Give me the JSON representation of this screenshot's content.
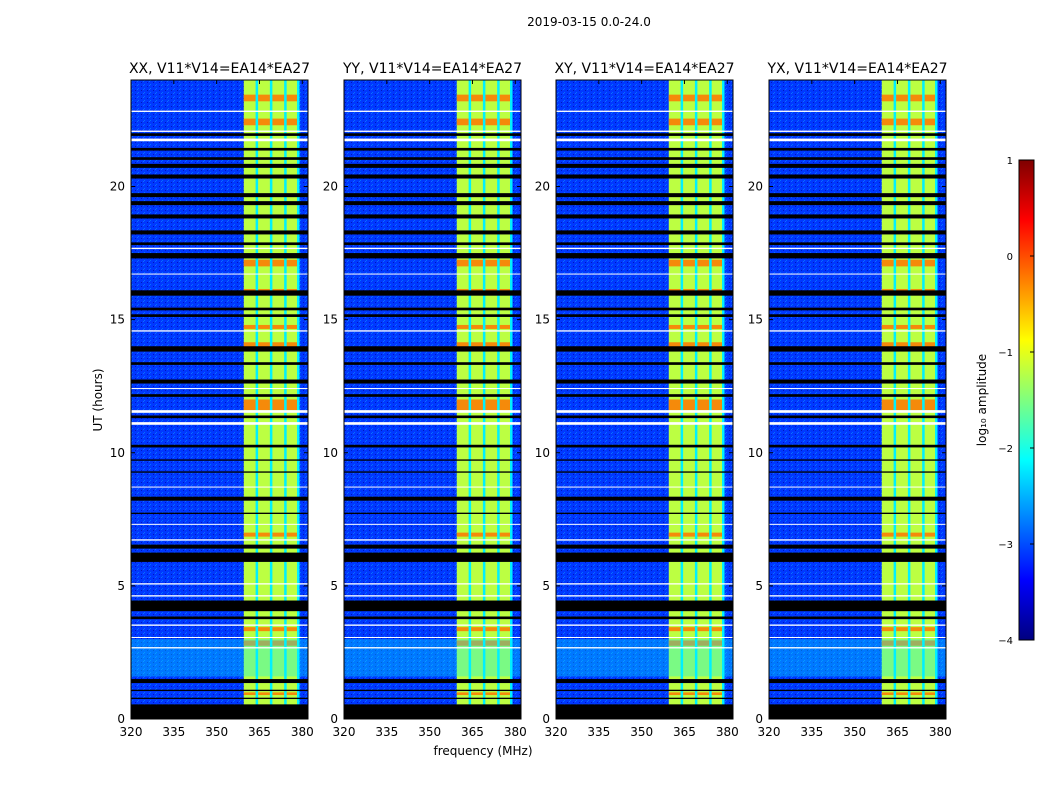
{
  "figure": {
    "suptitle": "2019-03-15 0.0-24.0",
    "xlabel": "frequency (MHz)",
    "ylabel": "UT (hours)"
  },
  "chart_data": {
    "type": "heatmap",
    "x_range_mhz": [
      320,
      382
    ],
    "y_range_hours": [
      0,
      24
    ],
    "x_ticks": [
      {
        "value": 320,
        "label": "320"
      },
      {
        "value": 335,
        "label": "335"
      },
      {
        "value": 350,
        "label": "350"
      },
      {
        "value": 365,
        "label": "365"
      },
      {
        "value": 380,
        "label": "380"
      }
    ],
    "y_ticks": [
      {
        "value": 0,
        "label": "0"
      },
      {
        "value": 5,
        "label": "5"
      },
      {
        "value": 10,
        "label": "10"
      },
      {
        "value": 15,
        "label": "15"
      },
      {
        "value": 20,
        "label": "20"
      }
    ],
    "panels": [
      {
        "title": "XX, V11*V14=EA14*EA27",
        "pol": "XX"
      },
      {
        "title": "YY, V11*V14=EA14*EA27",
        "pol": "YY"
      },
      {
        "title": "XY, V11*V14=EA14*EA27",
        "pol": "XY"
      },
      {
        "title": "YX, V11*V14=EA14*EA27",
        "pol": "YX"
      }
    ],
    "strong_band_mhz": [
      359.5,
      378.5
    ],
    "band_gap_freqs_mhz": [
      364,
      369,
      374,
      378.5
    ],
    "background_log_amplitude": -3.1,
    "band_log_amplitude": -1.2,
    "flagged_hours": [
      [
        0.0,
        0.55
      ],
      [
        0.75,
        0.8
      ],
      [
        1.05,
        1.1
      ],
      [
        1.35,
        1.5
      ],
      [
        3.75,
        3.85
      ],
      [
        4.05,
        4.45
      ],
      [
        5.9,
        6.25
      ],
      [
        6.4,
        6.55
      ],
      [
        7.7,
        7.75
      ],
      [
        8.2,
        8.35
      ],
      [
        9.25,
        9.3
      ],
      [
        9.7,
        9.75
      ],
      [
        10.2,
        10.3
      ],
      [
        11.3,
        11.4
      ],
      [
        12.1,
        12.2
      ],
      [
        12.6,
        12.75
      ],
      [
        13.3,
        13.4
      ],
      [
        13.8,
        14.0
      ],
      [
        15.1,
        15.2
      ],
      [
        15.35,
        15.45
      ],
      [
        15.9,
        16.1
      ],
      [
        17.3,
        17.5
      ],
      [
        17.8,
        17.9
      ],
      [
        18.2,
        18.35
      ],
      [
        18.8,
        18.95
      ],
      [
        19.3,
        19.45
      ],
      [
        19.6,
        19.75
      ],
      [
        20.3,
        20.45
      ],
      [
        20.7,
        20.85
      ],
      [
        21.0,
        21.1
      ],
      [
        21.35,
        21.45
      ],
      [
        21.9,
        22.0
      ]
    ],
    "white_gap_hours": [
      [
        2.65,
        2.7
      ],
      [
        3.05,
        3.08
      ],
      [
        3.5,
        3.55
      ],
      [
        4.6,
        4.65
      ],
      [
        5.05,
        5.1
      ],
      [
        6.7,
        6.75
      ],
      [
        7.3,
        7.33
      ],
      [
        8.7,
        8.73
      ],
      [
        11.05,
        11.15
      ],
      [
        11.5,
        11.6
      ],
      [
        12.4,
        12.43
      ],
      [
        14.55,
        14.6
      ],
      [
        16.7,
        16.73
      ],
      [
        17.65,
        17.7
      ],
      [
        21.7,
        21.8
      ],
      [
        22.05,
        22.1
      ],
      [
        22.8,
        22.85
      ]
    ],
    "hot_hours": [
      [
        0.9,
        1.0
      ],
      [
        2.75,
        2.95
      ],
      [
        3.3,
        3.45
      ],
      [
        6.85,
        7.0
      ],
      [
        11.6,
        12.0
      ],
      [
        13.95,
        14.15
      ],
      [
        14.65,
        14.8
      ],
      [
        15.95,
        16.15
      ],
      [
        17.0,
        17.25
      ],
      [
        22.3,
        22.55
      ],
      [
        23.2,
        23.45
      ]
    ],
    "colorbar": {
      "label": "log₁₀ amplitude",
      "min": -4,
      "max": 1,
      "ticks": [
        {
          "value": 1,
          "label": "1"
        },
        {
          "value": 0,
          "label": "0"
        },
        {
          "value": -1,
          "label": "−1"
        },
        {
          "value": -2,
          "label": "−2"
        },
        {
          "value": -3,
          "label": "−3"
        },
        {
          "value": -4,
          "label": "−4"
        }
      ],
      "colors": [
        "#00007f",
        "#0000ff",
        "#007fff",
        "#00ffff",
        "#7fff7f",
        "#ffff00",
        "#ff7f00",
        "#ff0000",
        "#7f0000"
      ]
    }
  }
}
